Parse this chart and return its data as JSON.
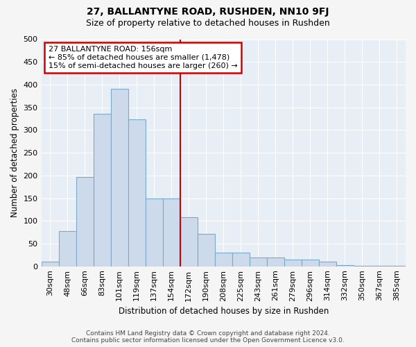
{
  "title": "27, BALLANTYNE ROAD, RUSHDEN, NN10 9FJ",
  "subtitle": "Size of property relative to detached houses in Rushden",
  "xlabel": "Distribution of detached houses by size in Rushden",
  "ylabel": "Number of detached properties",
  "footer_line1": "Contains HM Land Registry data © Crown copyright and database right 2024.",
  "footer_line2": "Contains public sector information licensed under the Open Government Licence v3.0.",
  "bar_labels": [
    "30sqm",
    "48sqm",
    "66sqm",
    "83sqm",
    "101sqm",
    "119sqm",
    "137sqm",
    "154sqm",
    "172sqm",
    "190sqm",
    "208sqm",
    "225sqm",
    "243sqm",
    "261sqm",
    "279sqm",
    "296sqm",
    "314sqm",
    "332sqm",
    "350sqm",
    "367sqm",
    "385sqm"
  ],
  "bar_values": [
    10,
    78,
    197,
    335,
    390,
    323,
    150,
    150,
    108,
    72,
    30,
    30,
    20,
    20,
    15,
    15,
    10,
    3,
    1,
    1,
    1
  ],
  "highlight_index": 7,
  "annotation_line1": "27 BALLANTYNE ROAD: 156sqm",
  "annotation_line2": "← 85% of detached houses are smaller (1,478)",
  "annotation_line3": "15% of semi-detached houses are larger (260) →",
  "bar_color": "#ccdaeb",
  "bar_edge_color": "#7aaac8",
  "highlight_line_color": "#cc0000",
  "annotation_box_color": "#cc0000",
  "ylim": [
    0,
    500
  ],
  "yticks": [
    0,
    50,
    100,
    150,
    200,
    250,
    300,
    350,
    400,
    450,
    500
  ],
  "background_color": "#e8eef5",
  "grid_color": "#ffffff",
  "fig_bg": "#f5f5f5"
}
